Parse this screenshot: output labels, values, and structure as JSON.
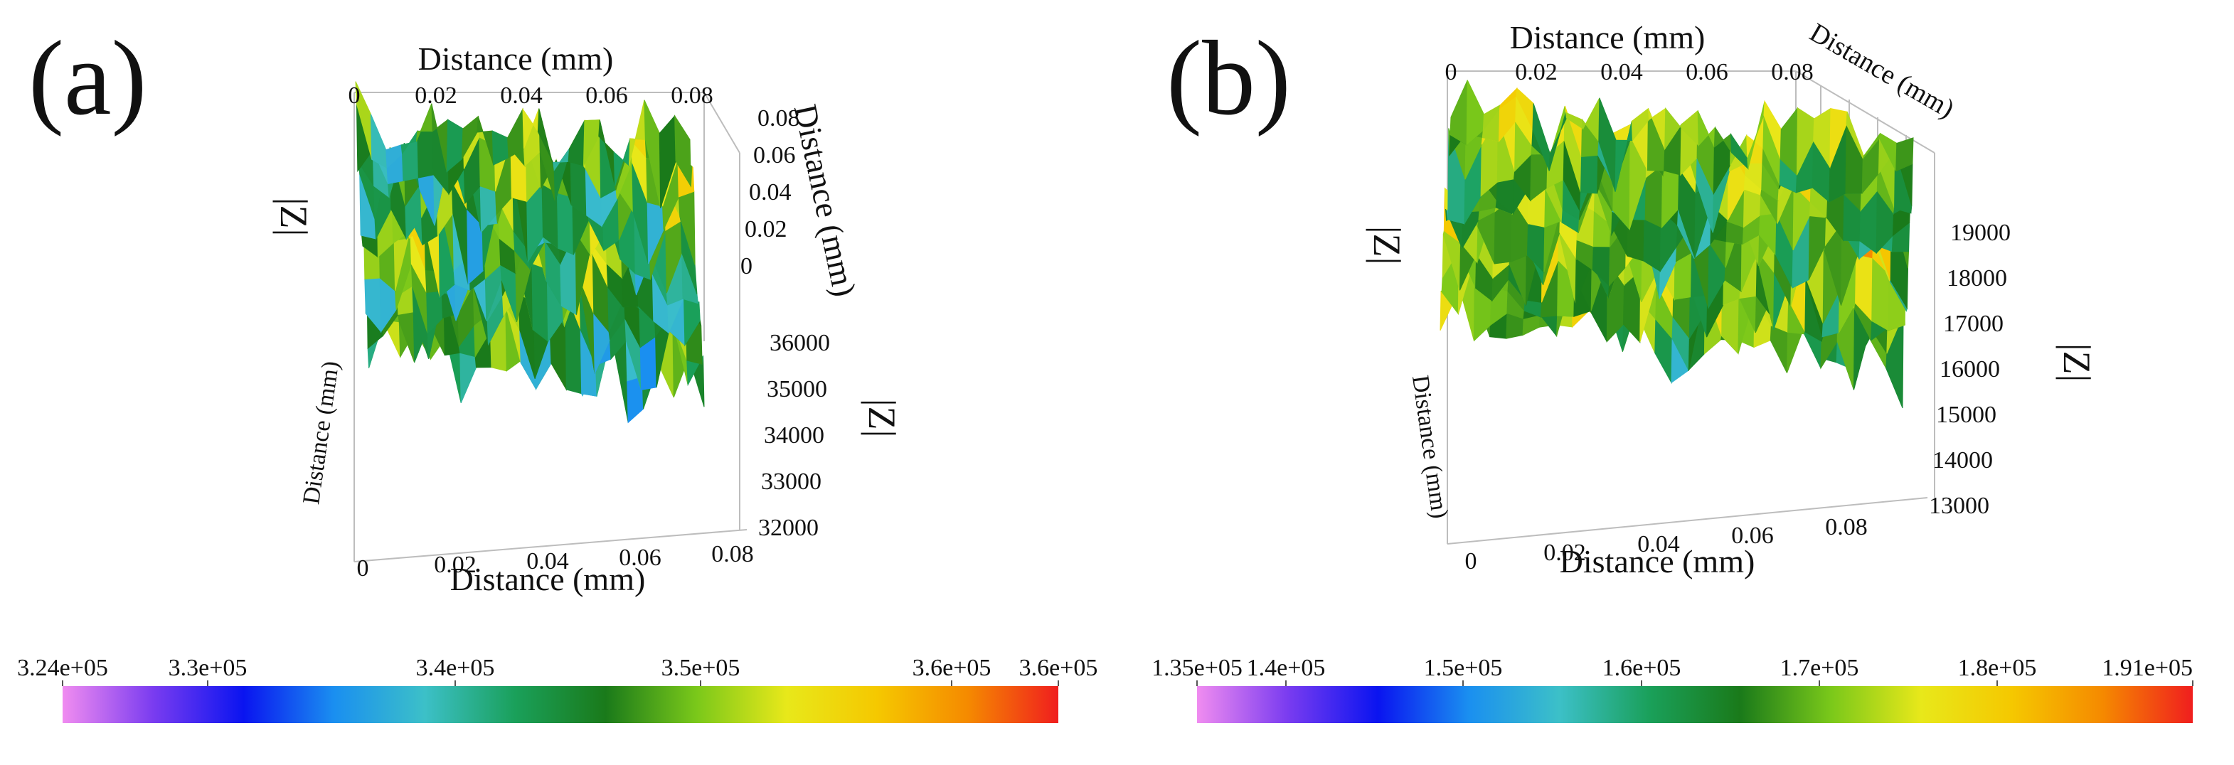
{
  "chart_data": [
    {
      "type": "surface3d",
      "panel_label": "(a)",
      "top_x_axis": {
        "label": "Distance (mm)",
        "ticks": [
          "0",
          "0.02",
          "0.04",
          "0.06",
          "0.08"
        ]
      },
      "bottom_x_axis": {
        "label": "Distance (mm)",
        "ticks": [
          "0",
          "0.02",
          "0.04",
          "0.06",
          "0.08"
        ]
      },
      "right_y_axis": {
        "label": "Distance (mm)",
        "ticks": [
          "0.08",
          "0.06",
          "0.04",
          "0.02",
          "0"
        ]
      },
      "left_y_axis_label": "Distance (mm)",
      "z_axis": {
        "label": "|Z|",
        "ticks": [
          "36000",
          "35000",
          "34000",
          "33000",
          "32000"
        ]
      },
      "left_z_label": "|Z|",
      "colorbar": {
        "ticks": [
          "3.24e+05",
          "3.3e+05",
          "3.4e+05",
          "3.5e+05",
          "3.6e+05",
          "3.6e+05"
        ],
        "colormap": [
          "#f08cf0",
          "#7a3cf0",
          "#0a14f0",
          "#1a8ff0",
          "#3cc0c8",
          "#1aa05a",
          "#1a7a1a",
          "#7ac81a",
          "#e8e81a",
          "#f5c800",
          "#f58a00",
          "#f01e1e"
        ]
      },
      "z_range_colorbar": [
        324000,
        360000
      ]
    },
    {
      "type": "surface3d",
      "panel_label": "(b)",
      "top_x_axis": {
        "label": "Distance (mm)",
        "ticks": [
          "0",
          "0.02",
          "0.04",
          "0.06",
          "0.08"
        ]
      },
      "bottom_x_axis": {
        "label": "Distance (mm)",
        "ticks": [
          "0",
          "0.02",
          "0.04",
          "0.06",
          "0.08"
        ]
      },
      "right_y_axis": {
        "label": "Distance (mm)",
        "ticks": []
      },
      "left_y_axis_label": "Distance (mm)",
      "z_axis": {
        "label": "|Z|",
        "ticks": [
          "19000",
          "18000",
          "17000",
          "16000",
          "15000",
          "14000",
          "13000"
        ]
      },
      "left_z_label": "|Z|",
      "colorbar": {
        "ticks": [
          "1.35e+05",
          "1.4e+05",
          "1.5e+05",
          "1.6e+05",
          "1.7e+05",
          "1.8e+05",
          "1.91e+05"
        ],
        "colormap": [
          "#f08cf0",
          "#7a3cf0",
          "#0a14f0",
          "#1a8ff0",
          "#3cc0c8",
          "#1aa05a",
          "#1a7a1a",
          "#7ac81a",
          "#e8e81a",
          "#f5c800",
          "#f58a00",
          "#f01e1e"
        ]
      },
      "z_range_colorbar": [
        135000,
        191000
      ]
    }
  ]
}
